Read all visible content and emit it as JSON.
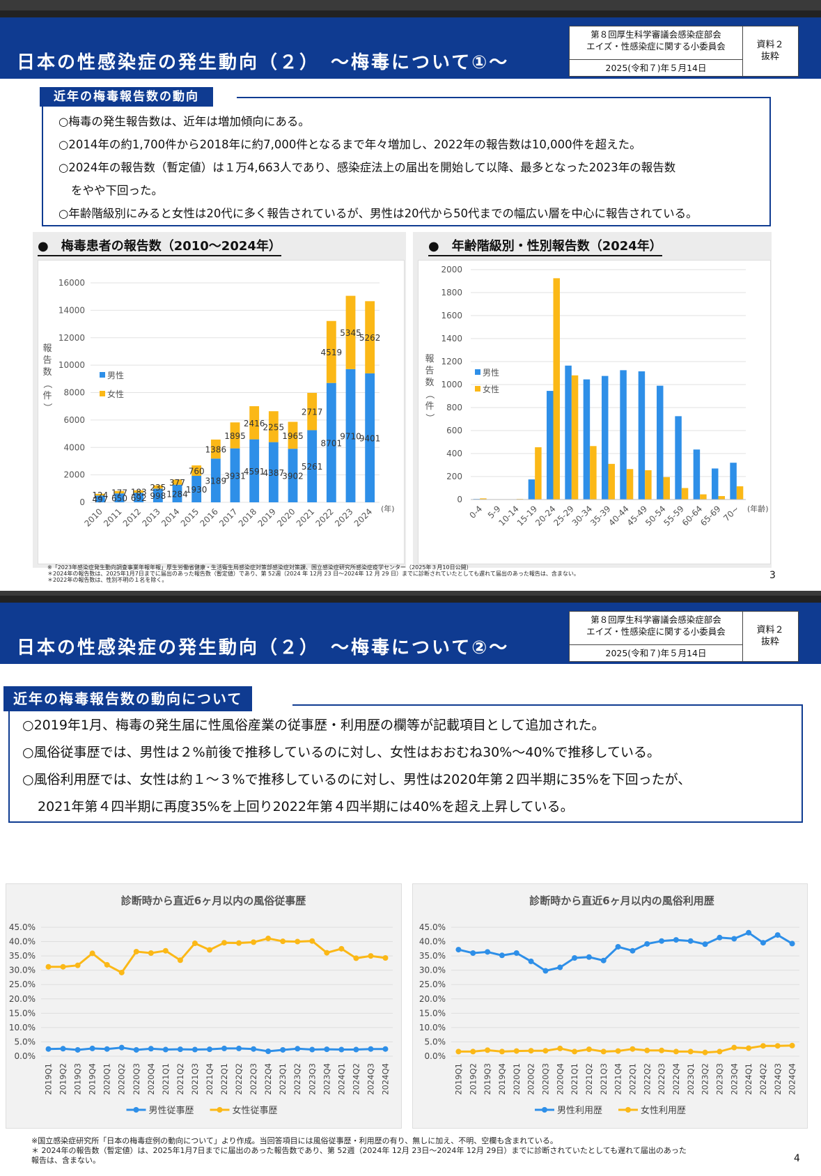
{
  "slide1": {
    "title": "日本の性感染症の発生動向（２）　～梅毒について①～",
    "meeting_name_1": "第８回厚生科学審議会感染症部会",
    "meeting_name_2": "エイズ・性感染症に関する小委員会",
    "meeting_date": "2025(令和７)年５月14日",
    "doc_label_1": "資料２",
    "doc_label_2": "抜粋",
    "section_heading": "近年の梅毒報告数の動向",
    "bullets": [
      "○梅毒の発生報告数は、近年は増加傾向にある。",
      "○2014年の約1,700件から2018年に約7,000件となるまで年々増加し、2022年の報告数は10,000件を超えた。",
      "○2024年の報告数（暫定値）は１万4,663人であり、感染症法上の届出を開始して以降、最多となった2023年の報告数",
      "をやや下回った。",
      "○年齢階級別にみると女性は20代に多く報告されているが、男性は20代から50代までの幅広い層を中心に報告されている。"
    ],
    "left_panel_title": "●　梅毒患者の報告数（2010～2024年）",
    "right_panel_title": "●　年齢階級別・性別報告数（2024年）",
    "footnotes": [
      "※「2023年感染症発生動向調査事業年報年報」厚生労働省健康・生活衛生局感染症対策部感染症対策課、国立感染症研究所感染症疫学センター（2025年３月10日公開）",
      "＊2024年の報告数は、2025年1月7日までに届出のあった報告数（暫定値）であり、第 52週（2024 年 12月 23 日～2024年 12 月 29 日）までに診断されていたとしても遅れて届出のあった報告は、含まない。",
      "＊2022年の報告数は、性別不明の１名を除く。"
    ],
    "page_number": "3"
  },
  "slide2": {
    "title": "日本の性感染症の発生動向（２）　～梅毒について②～",
    "meeting_name_1": "第８回厚生科学審議会感染症部会",
    "meeting_name_2": "エイズ・性感染症に関する小委員会",
    "meeting_date": "2025(令和７)年５月14日",
    "doc_label_1": "資料２",
    "doc_label_2": "抜粋",
    "section_heading": "近年の梅毒報告数の動向について",
    "bullets": [
      "○2019年1月、梅毒の発生届に性風俗産業の従事歴・利用歴の欄等が記載項目として追加された。",
      "○風俗従事歴では、男性は２%前後で推移しているのに対し、女性はおおむね30%～40%で推移している。",
      "○風俗利用歴では、女性は約１～３%で推移しているのに対し、男性は2020年第２四半期に35%を下回ったが、",
      "2021年第４四半期に再度35%を上回り2022年第４四半期には40%を超え上昇している。"
    ],
    "footnotes": [
      "※国立感染症研究所「日本の梅毒症例の動向について」より作成。当回答項目には風俗従事歴・利用歴の有り、無しに加え、不明、空欄も含まれている。",
      "＊ 2024年の報告数（暫定値）は、2025年1月7日までに届出のあった報告数であり、第 52週（2024年 12月 23日～2024年 12月 29日）までに診断されていたとしても遅れて届出のあった",
      "報告は、含まない。"
    ],
    "page_number": "4"
  },
  "colors": {
    "banner": "#0f3b91",
    "male": "#2e8fe8",
    "female": "#fbb817",
    "panel_bg": "#ececec"
  },
  "chart_data": [
    {
      "type": "bar",
      "stacked": true,
      "title": "",
      "ylabel": "報告数（件）",
      "x_unit": "(年)",
      "ylim": [
        0,
        16000
      ],
      "yticks": [
        0,
        2000,
        4000,
        6000,
        8000,
        10000,
        12000,
        14000,
        16000
      ],
      "categories": [
        "2010",
        "2011",
        "2012",
        "2013",
        "2014",
        "2015",
        "2016",
        "2017",
        "2018",
        "2019",
        "2020",
        "2021",
        "2022",
        "2023",
        "2024"
      ],
      "series": [
        {
          "name": "男性",
          "values": [
            497,
            650,
            692,
            998,
            1284,
            1930,
            3189,
            3931,
            4591,
            4387,
            3902,
            5261,
            8701,
            9710,
            9401
          ]
        },
        {
          "name": "女性",
          "values": [
            124,
            177,
            183,
            235,
            377,
            760,
            1386,
            1895,
            2416,
            2255,
            1965,
            2717,
            4519,
            5345,
            5262
          ]
        }
      ],
      "legend": "left-middle"
    },
    {
      "type": "bar",
      "grouped": true,
      "title": "",
      "ylabel": "報告数（件）",
      "x_unit": "(年齢)",
      "ylim": [
        0,
        2000
      ],
      "yticks": [
        0,
        200,
        400,
        600,
        800,
        1000,
        1200,
        1400,
        1600,
        1800,
        2000
      ],
      "categories": [
        "0-4",
        "5-9",
        "10-14",
        "15-19",
        "20-24",
        "25-29",
        "30-34",
        "35-39",
        "40-44",
        "45-49",
        "50-54",
        "55-59",
        "60-64",
        "65-69",
        "70~"
      ],
      "series": [
        {
          "name": "男性",
          "values": [
            5,
            0,
            0,
            175,
            945,
            1165,
            1045,
            1075,
            1125,
            1115,
            990,
            725,
            435,
            270,
            320
          ]
        },
        {
          "name": "女性",
          "values": [
            10,
            0,
            5,
            455,
            1925,
            1080,
            465,
            310,
            265,
            255,
            195,
            100,
            45,
            30,
            115
          ]
        }
      ],
      "legend": "left-middle"
    },
    {
      "type": "line",
      "title": "診断時から直近6ヶ月以内の風俗従事歴",
      "ylim": [
        0,
        45
      ],
      "yticks": [
        "0.0%",
        "5.0%",
        "10.0%",
        "15.0%",
        "20.0%",
        "25.0%",
        "30.0%",
        "35.0%",
        "40.0%",
        "45.0%"
      ],
      "categories": [
        "2019Q1",
        "2019Q2",
        "2019Q3",
        "2019Q4",
        "2020Q1",
        "2020Q2",
        "2020Q3",
        "2020Q4",
        "2021Q1",
        "2021Q2",
        "2021Q3",
        "2021Q4",
        "2022Q1",
        "2022Q2",
        "2022Q3",
        "2022Q4",
        "2023Q1",
        "2023Q2",
        "2023Q3",
        "2023Q4",
        "2024Q1",
        "2024Q2",
        "2024Q3",
        "2024Q4"
      ],
      "series": [
        {
          "name": "男性従事歴",
          "values": [
            2.5,
            2.6,
            2.2,
            2.7,
            2.5,
            3.0,
            2.2,
            2.6,
            2.3,
            2.4,
            2.3,
            2.4,
            2.7,
            2.7,
            2.5,
            1.7,
            2.2,
            2.6,
            2.3,
            2.4,
            2.3,
            2.3,
            2.5,
            2.5
          ]
        },
        {
          "name": "女性従事歴",
          "values": [
            31.2,
            31.2,
            31.7,
            35.9,
            31.9,
            29.2,
            36.5,
            36.0,
            36.8,
            33.5,
            39.4,
            37.1,
            39.6,
            39.5,
            39.8,
            41.1,
            40.1,
            40.0,
            40.2,
            36.1,
            37.5,
            34.2,
            35.0,
            34.3
          ]
        }
      ],
      "legend": "bottom"
    },
    {
      "type": "line",
      "title": "診断時から直近6ヶ月以内の風俗利用歴",
      "ylim": [
        0,
        45
      ],
      "yticks": [
        "0.0%",
        "5.0%",
        "10.0%",
        "15.0%",
        "20.0%",
        "25.0%",
        "30.0%",
        "35.0%",
        "40.0%",
        "45.0%"
      ],
      "categories": [
        "2019Q1",
        "2019Q2",
        "2019Q3",
        "2019Q4",
        "2020Q1",
        "2020Q2",
        "2020Q3",
        "2020Q4",
        "2021Q1",
        "2021Q2",
        "2021Q3",
        "2021Q4",
        "2022Q1",
        "2022Q2",
        "2022Q3",
        "2022Q4",
        "2023Q1",
        "2023Q2",
        "2023Q3",
        "2023Q4",
        "2024Q1",
        "2024Q2",
        "2024Q3",
        "2024Q4"
      ],
      "series": [
        {
          "name": "男性利用歴",
          "values": [
            37.2,
            36.0,
            36.4,
            35.2,
            36.0,
            33.1,
            29.8,
            31.0,
            34.3,
            34.6,
            33.4,
            38.2,
            36.8,
            39.2,
            40.2,
            40.6,
            40.2,
            39.1,
            41.4,
            41.0,
            43.1,
            39.6,
            42.3,
            39.3
          ]
        },
        {
          "name": "女性利用歴",
          "values": [
            1.6,
            1.6,
            2.1,
            1.6,
            1.8,
            1.9,
            1.9,
            2.7,
            1.6,
            2.4,
            1.6,
            1.8,
            2.5,
            2.0,
            2.0,
            1.6,
            1.6,
            1.3,
            1.6,
            3.0,
            2.8,
            3.6,
            3.6,
            3.7
          ]
        }
      ],
      "legend": "bottom"
    }
  ]
}
